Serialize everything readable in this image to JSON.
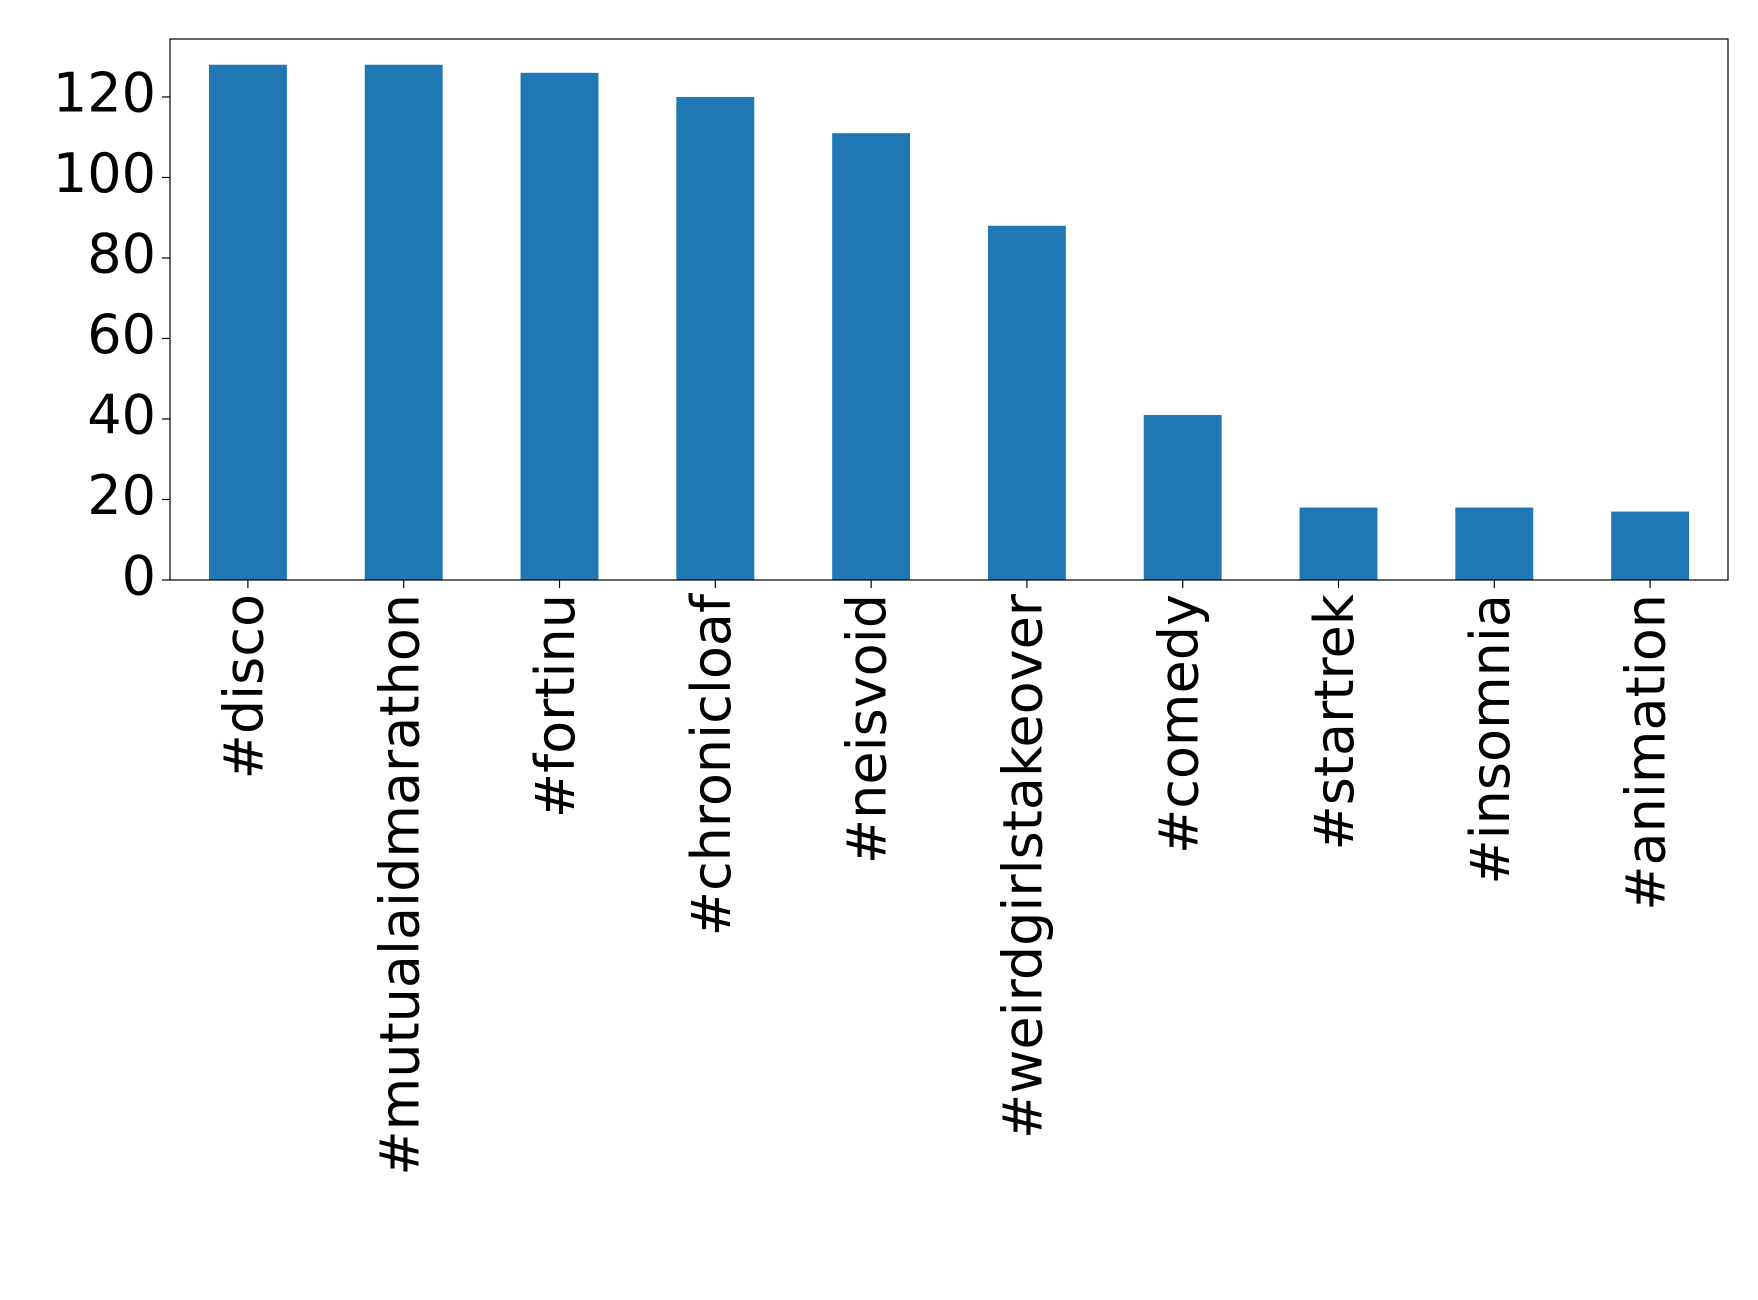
{
  "chart_data": {
    "type": "bar",
    "categories": [
      "#disco",
      "#mutualaidmarathon",
      "#fortinu",
      "#chronicloaf",
      "#neisvoid",
      "#weirdgirlstakeover",
      "#comedy",
      "#startrek",
      "#insomnia",
      "#animation"
    ],
    "values": [
      128,
      128,
      126,
      120,
      111,
      88,
      41,
      18,
      18,
      17
    ],
    "color": "#1f77b4",
    "ylim": [
      0,
      134.4
    ],
    "yticks": [
      0,
      20,
      40,
      60,
      80,
      100,
      120
    ],
    "grid": false
  }
}
